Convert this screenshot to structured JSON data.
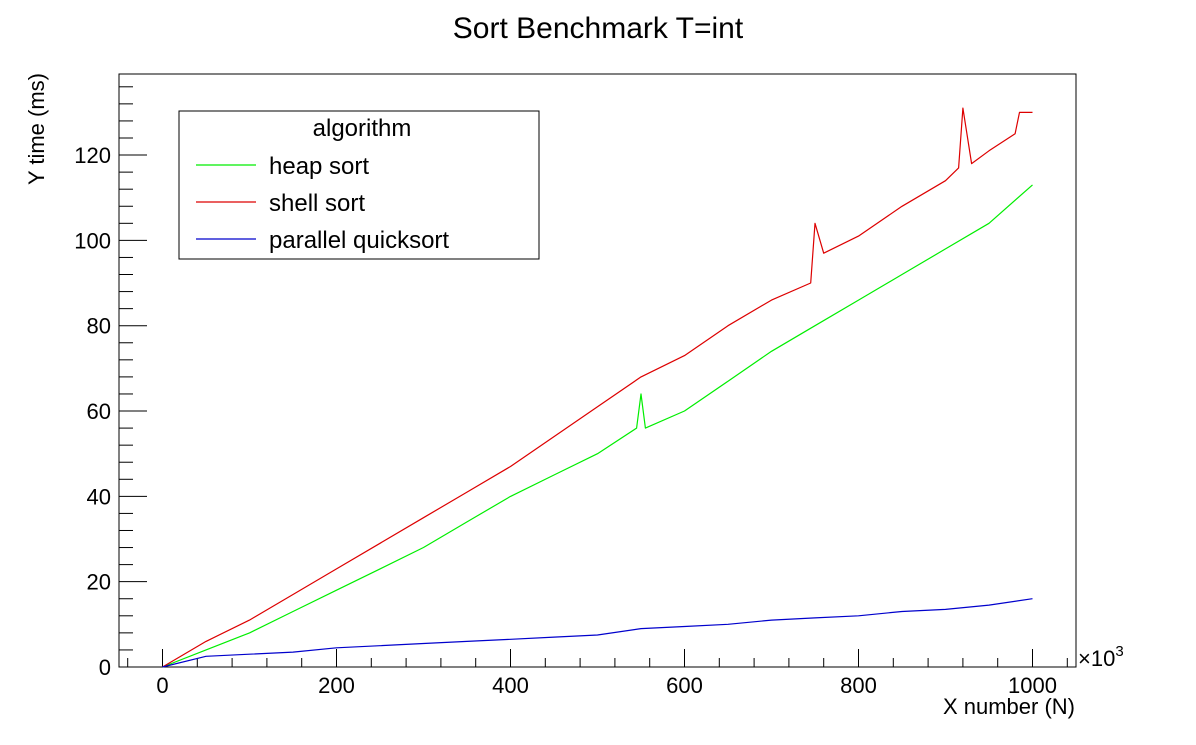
{
  "chart_data": {
    "type": "line",
    "title": "Sort Benchmark T=int",
    "xlabel": "X number (N)",
    "ylabel": "Y time (ms)",
    "x_multiplier_label": "×10",
    "x_multiplier_exponent": "3",
    "xlim": [
      -50,
      1050
    ],
    "ylim": [
      0,
      139
    ],
    "x_ticks": [
      0,
      200,
      400,
      600,
      800,
      1000
    ],
    "y_ticks": [
      0,
      20,
      40,
      60,
      80,
      100,
      120
    ],
    "grid": false,
    "legend_title": "algorithm",
    "legend_position": "top-left",
    "series": [
      {
        "name": "heap sort",
        "color": "#00ee00",
        "x": [
          0,
          50,
          100,
          150,
          200,
          250,
          300,
          350,
          400,
          450,
          500,
          545,
          550,
          555,
          600,
          650,
          700,
          750,
          800,
          850,
          900,
          950,
          1000
        ],
        "y": [
          0,
          4,
          8,
          13,
          18,
          23,
          28,
          34,
          40,
          45,
          50,
          56,
          64,
          56,
          60,
          67,
          74,
          80,
          86,
          92,
          98,
          104,
          113
        ]
      },
      {
        "name": "shell sort",
        "color": "#dd0000",
        "x": [
          0,
          50,
          100,
          150,
          200,
          250,
          300,
          350,
          400,
          450,
          500,
          550,
          600,
          650,
          700,
          745,
          750,
          760,
          800,
          850,
          900,
          915,
          920,
          930,
          950,
          980,
          985,
          1000
        ],
        "y": [
          0,
          6,
          11,
          17,
          23,
          29,
          35,
          41,
          47,
          54,
          61,
          68,
          73,
          80,
          86,
          90,
          104,
          97,
          101,
          108,
          114,
          117,
          131,
          118,
          121,
          125,
          130,
          130
        ]
      },
      {
        "name": "parallel quicksort",
        "color": "#0000cc",
        "x": [
          0,
          50,
          100,
          150,
          200,
          250,
          300,
          350,
          400,
          450,
          500,
          550,
          600,
          650,
          700,
          750,
          800,
          850,
          900,
          950,
          1000
        ],
        "y": [
          0,
          2.5,
          3,
          3.5,
          4.5,
          5,
          5.5,
          6,
          6.5,
          7,
          7.5,
          9,
          9.5,
          10,
          11,
          11.5,
          12,
          13,
          13.5,
          14.5,
          16
        ]
      }
    ]
  }
}
